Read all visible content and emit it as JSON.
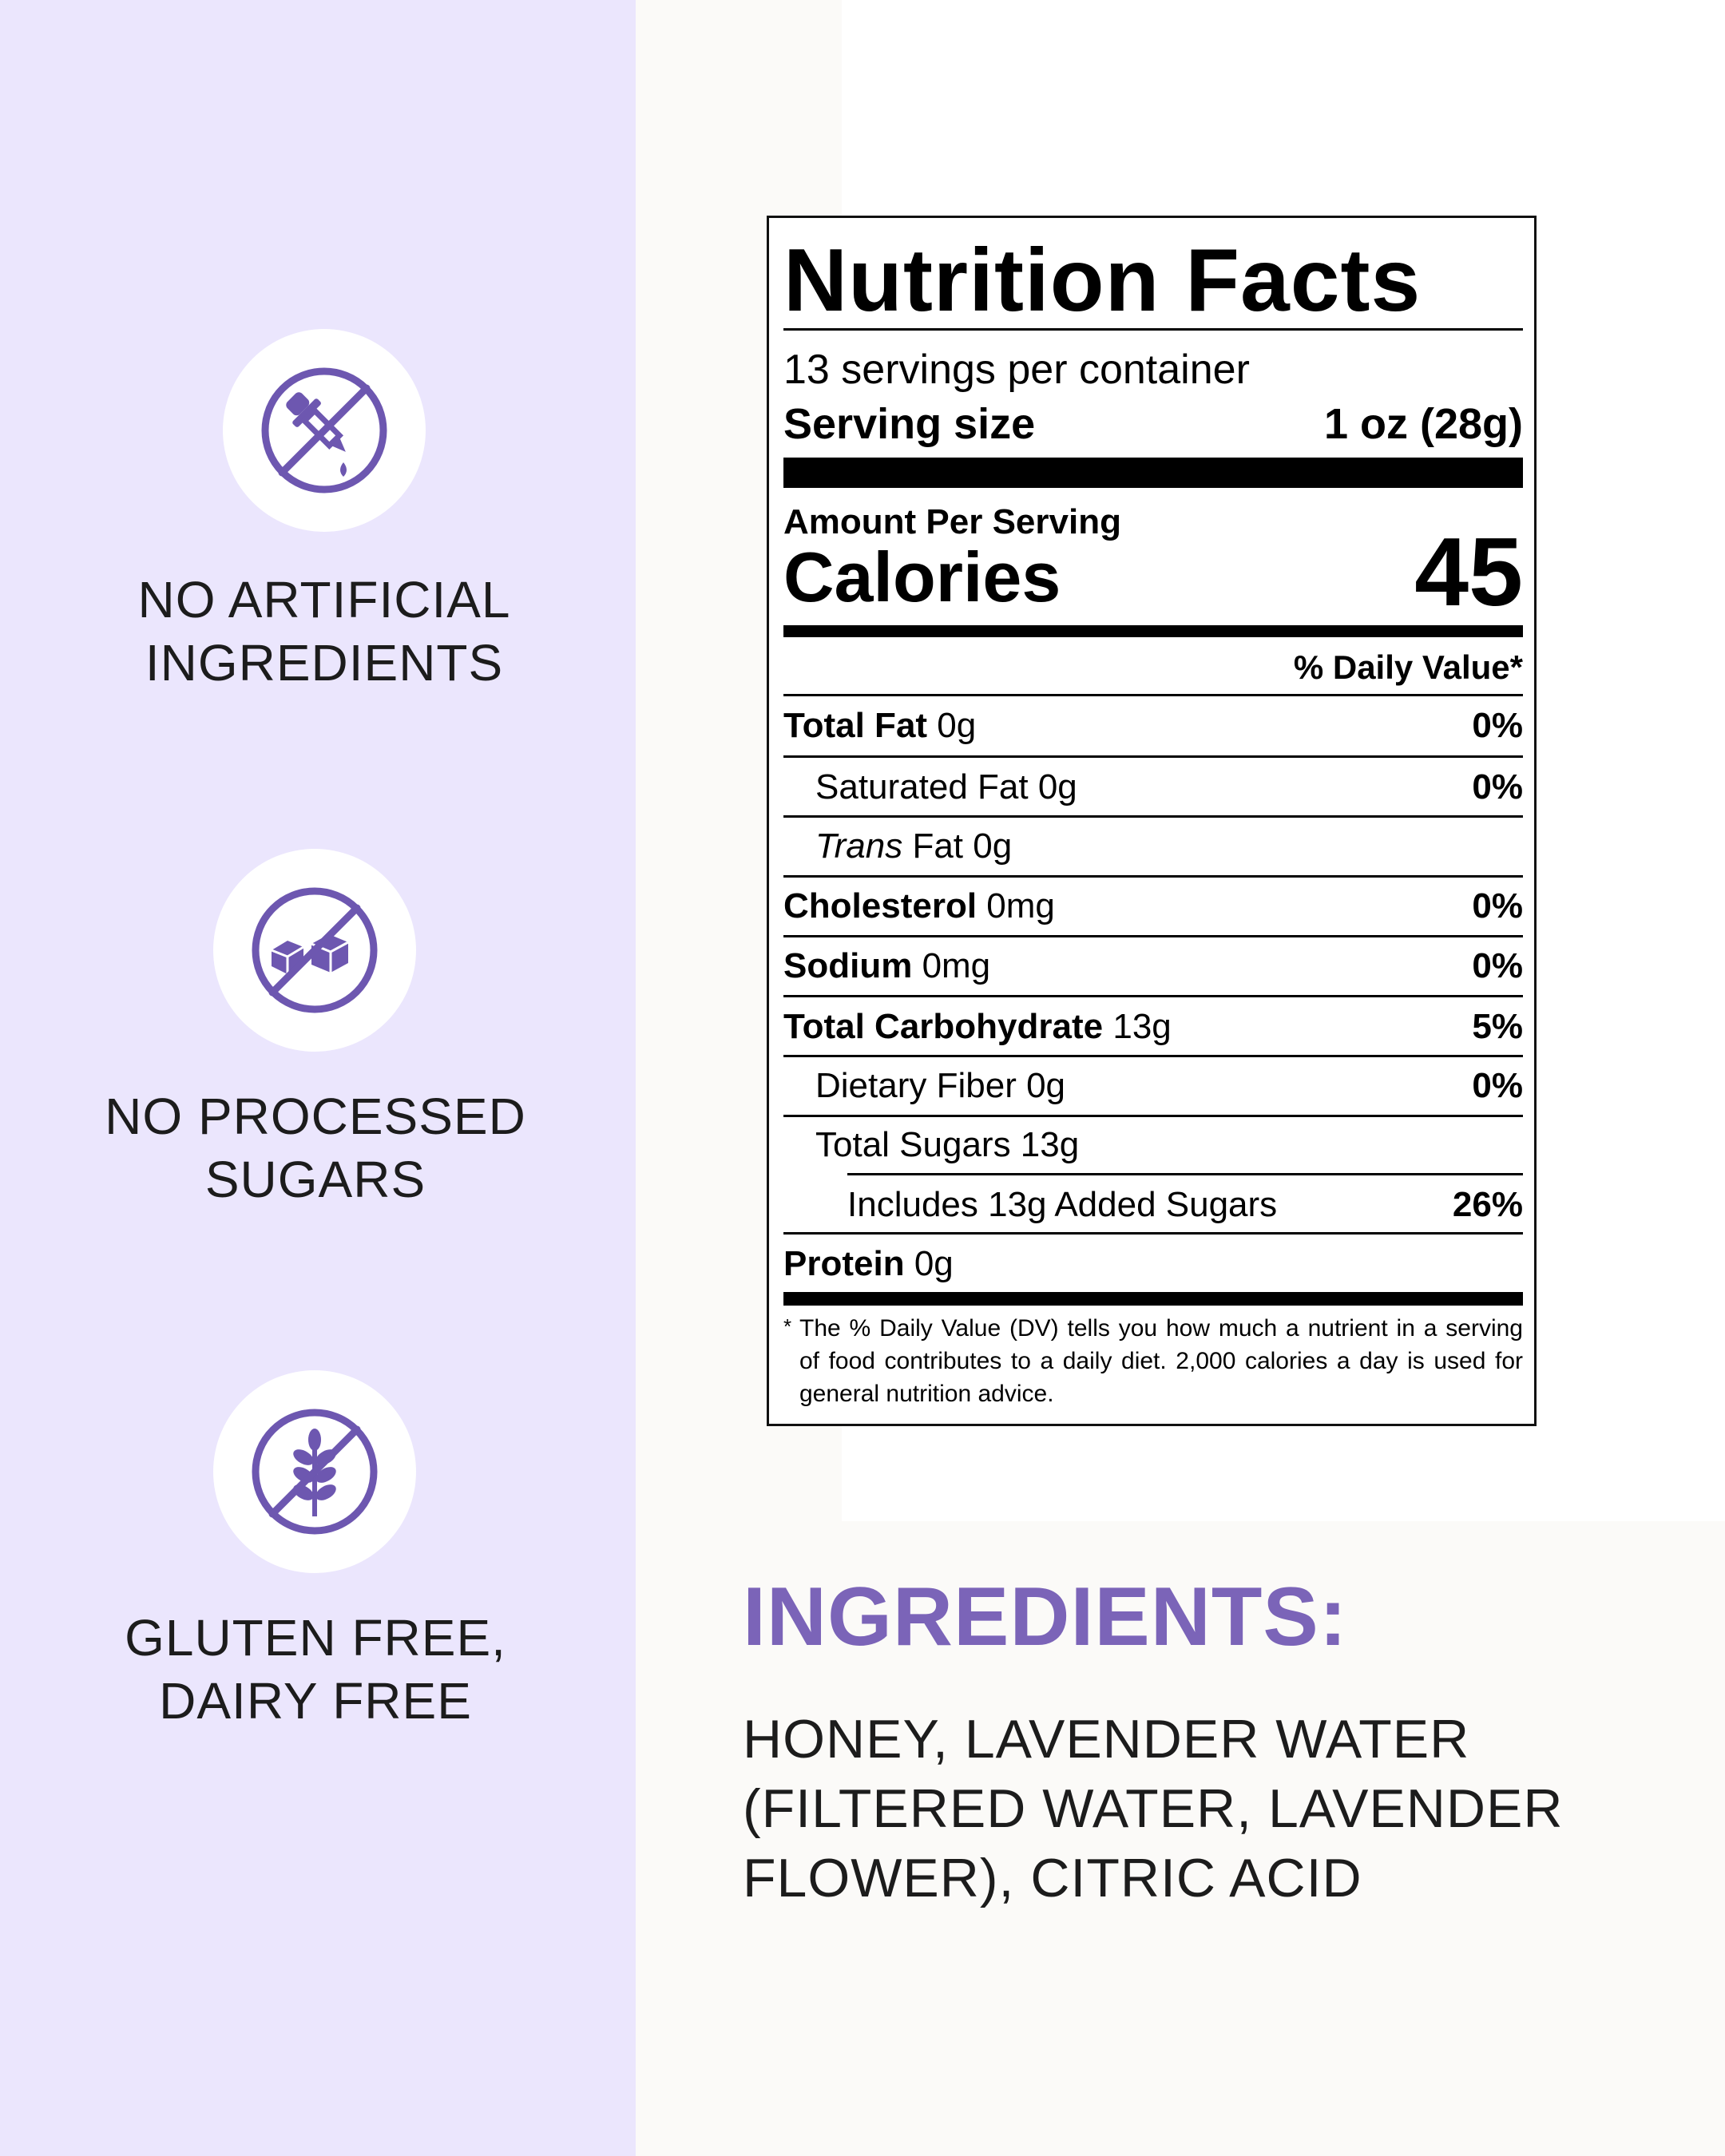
{
  "features": [
    {
      "label": "NO ARTIFICIAL\nINGREDIENTS",
      "icon": "no-dropper-icon"
    },
    {
      "label": "NO PROCESSED\nSUGARS",
      "icon": "no-sugar-cubes-icon"
    },
    {
      "label": "GLUTEN FREE,\nDAIRY FREE",
      "icon": "no-wheat-icon"
    }
  ],
  "nutrition": {
    "title": "Nutrition Facts",
    "servings": "13 servings per container",
    "serving_size_label": "Serving size",
    "serving_size_value": "1 oz (28g)",
    "amount_per_serving": "Amount Per Serving",
    "calories_label": "Calories",
    "calories_value": "45",
    "daily_value_header": "% Daily Value*",
    "rows": [
      {
        "name": "Total Fat",
        "amount": "0g",
        "pct": "0%"
      },
      {
        "name": "Saturated Fat 0g",
        "amount": "",
        "pct": "0%"
      },
      {
        "name_italic": "Trans",
        "name": " Fat 0g",
        "pct": ""
      },
      {
        "name": "Cholesterol",
        "amount": "0mg",
        "pct": "0%"
      },
      {
        "name": "Sodium",
        "amount": "0mg",
        "pct": "0%"
      },
      {
        "name": "Total Carbohydrate",
        "amount": "13g",
        "pct": "5%"
      },
      {
        "name": "Dietary Fiber 0g",
        "amount": "",
        "pct": "0%"
      },
      {
        "name": "Total Sugars 13g",
        "amount": "",
        "pct": ""
      },
      {
        "name": "Includes 13g Added Sugars",
        "amount": "",
        "pct": "26%"
      },
      {
        "name": "Protein",
        "amount": "0g",
        "pct": ""
      }
    ],
    "footnote_star": "*",
    "footnote": "The % Daily Value (DV) tells you how much a nutrient in a serving of food contributes to a daily diet. 2,000 calories a day is used for general nutrition advice."
  },
  "ingredients": {
    "title": "INGREDIENTS:",
    "text": "HONEY, LAVENDER WATER (FILTERED WATER, LAVENDER FLOWER), CITRIC ACID"
  },
  "colors": {
    "sidebar": "#ebe6fd",
    "accent": "#7b64b8",
    "icon": "#6d57b0"
  }
}
